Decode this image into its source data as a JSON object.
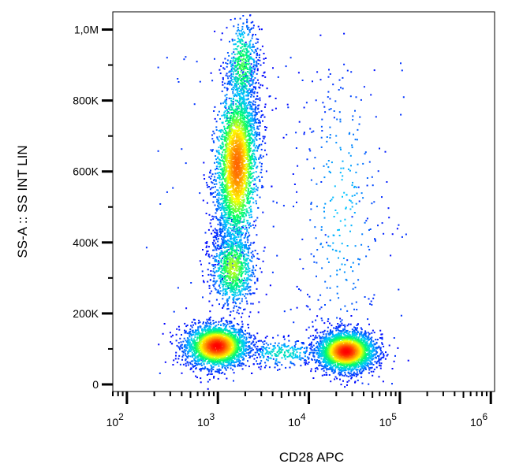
{
  "chart_data": {
    "type": "scatter",
    "subtype": "flow-cytometry-density-dot-plot",
    "xlabel": "CD28 APC",
    "ylabel": "SS-A :: SS INT LIN",
    "x_scale": "log",
    "y_scale": "linear",
    "xlim": [
      70,
      1100000
    ],
    "ylim": [
      -20000,
      1050000
    ],
    "x_ticks": [
      {
        "value": 100,
        "base": "10",
        "exp": "2"
      },
      {
        "value": 1000,
        "base": "10",
        "exp": "3"
      },
      {
        "value": 10000,
        "base": "10",
        "exp": "4"
      },
      {
        "value": 100000,
        "base": "10",
        "exp": "5"
      },
      {
        "value": 1000000,
        "base": "10",
        "exp": "6"
      }
    ],
    "y_ticks": [
      {
        "value": 0,
        "label": "0"
      },
      {
        "value": 200000,
        "label": "200K"
      },
      {
        "value": 400000,
        "label": "400K"
      },
      {
        "value": 600000,
        "label": "600K"
      },
      {
        "value": 800000,
        "label": "800K"
      },
      {
        "value": 1000000,
        "label": "1,0M"
      }
    ],
    "colormap": [
      "#0000ff",
      "#00c8ff",
      "#00ff66",
      "#ffff00",
      "#ff8800",
      "#ff0000"
    ],
    "populations": [
      {
        "name": "low-scatter CD28- cluster",
        "x_center": 1000,
        "y_center": 110000,
        "density": "high"
      },
      {
        "name": "high-scatter CD28- band",
        "x_center": 1600,
        "y_center": 620000,
        "density": "high"
      },
      {
        "name": "intermediate-scatter CD28- band",
        "x_center": 1500,
        "y_center": 320000,
        "density": "medium"
      },
      {
        "name": "low-scatter CD28+ cluster",
        "x_center": 25000,
        "y_center": 95000,
        "density": "high"
      },
      {
        "name": "sparse CD28+ high-scatter events",
        "x_center": 20000,
        "y_center": 500000,
        "density": "low"
      }
    ],
    "grid": false,
    "legend": "none"
  }
}
